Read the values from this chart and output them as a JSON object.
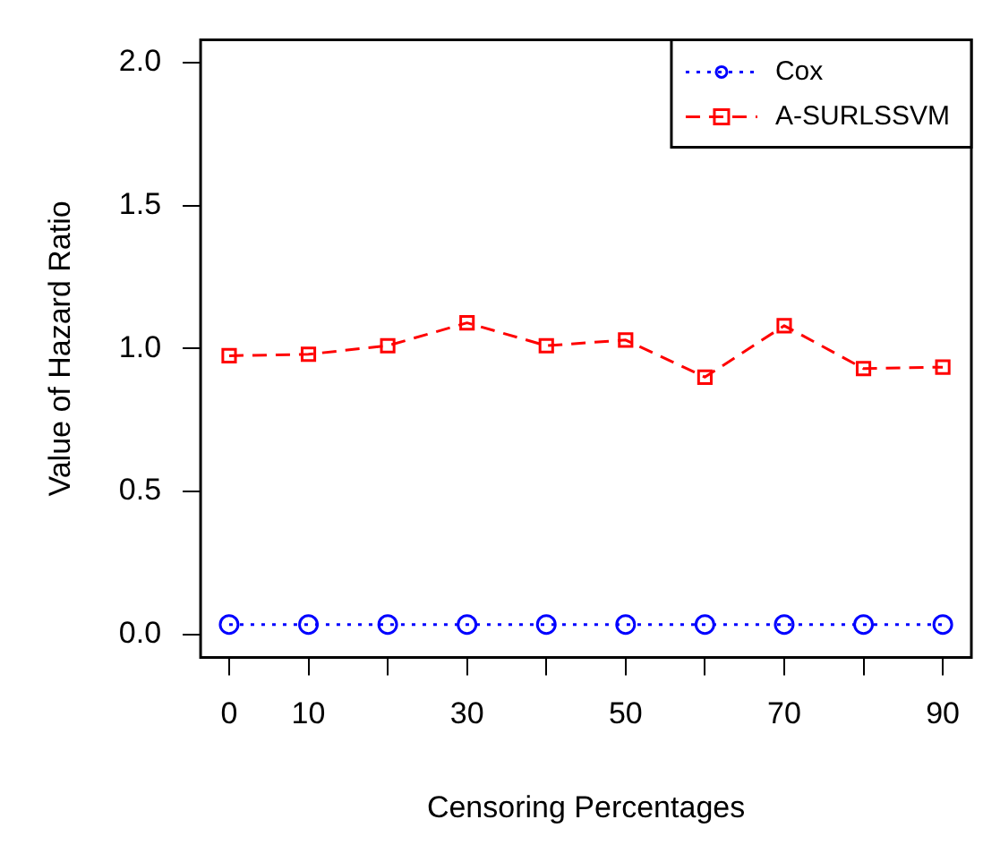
{
  "chart_data": {
    "type": "line",
    "xlabel": "Censoring Percentages",
    "ylabel": "Value of Hazard Ratio",
    "x": [
      0,
      10,
      20,
      30,
      40,
      50,
      60,
      70,
      80,
      90
    ],
    "series": [
      {
        "name": "Cox",
        "color": "#0000ff",
        "marker": "circle",
        "line_style": "dotted",
        "values": [
          0.035,
          0.035,
          0.035,
          0.035,
          0.035,
          0.035,
          0.035,
          0.035,
          0.035,
          0.035
        ]
      },
      {
        "name": "A-SURLSSVM",
        "color": "#ff0000",
        "marker": "square",
        "line_style": "dashed",
        "values": [
          0.975,
          0.98,
          1.01,
          1.09,
          1.01,
          1.03,
          0.9,
          1.08,
          0.93,
          0.935
        ]
      }
    ],
    "xlim": [
      -3.6,
      93.6
    ],
    "ylim": [
      -0.08,
      2.08
    ],
    "xticks": [
      0,
      10,
      {
        "value": 20,
        "label": null
      },
      30,
      {
        "value": 40,
        "label": null
      },
      50,
      {
        "value": 60,
        "label": null
      },
      70,
      {
        "value": 80,
        "label": null
      },
      90
    ],
    "yticks": [
      {
        "value": 0,
        "label": "0.0"
      },
      {
        "value": 0.5,
        "label": "0.5"
      },
      {
        "value": 1,
        "label": "1.0"
      },
      {
        "value": 1.5,
        "label": "1.5"
      },
      {
        "value": 2,
        "label": "2.0"
      }
    ],
    "grid": false,
    "legend": "top right"
  }
}
